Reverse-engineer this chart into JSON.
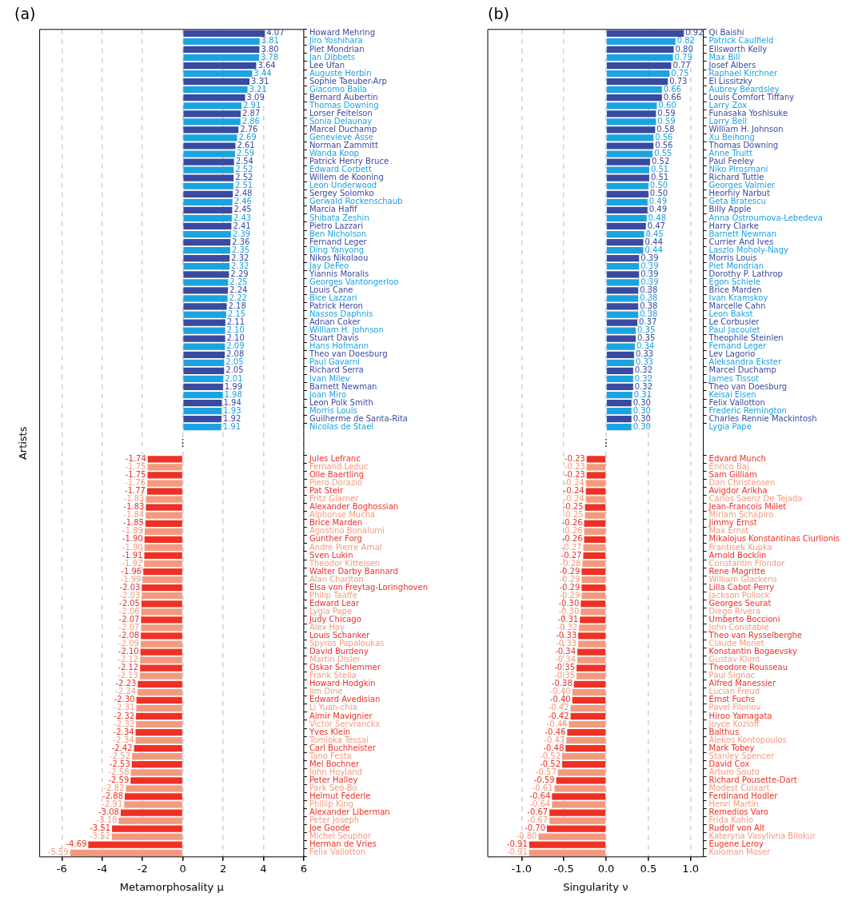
{
  "chart_data": [
    {
      "type": "bar",
      "orientation": "horizontal",
      "title": "(a)",
      "xlabel": "Metamorphosality μ",
      "ylabel": "Artists",
      "grid": "x",
      "xlim": [
        -7.1,
        6
      ],
      "xticks": [
        -6,
        -4,
        -2,
        0,
        2,
        4,
        6
      ],
      "annotations": [
        "⋮"
      ],
      "categories": [
        "Howard Mehring",
        "Jiro Yoshihara",
        "Piet Mondrian",
        "Jan Dibbets",
        "Lee Ufan",
        "Auguste Herbin",
        "Sophie Taeuber-Arp",
        "Giacomo Balla",
        "Bernard Aubertin",
        "Thomas Downing",
        "Lorser Feitelson",
        "Sonia Delaunay",
        "Marcel Duchamp",
        "Genevieve Asse",
        "Norman Zammitt",
        "Wanda Koop",
        "Patrick Henry Bruce",
        "Edward Corbett",
        "Willem de Kooning",
        "Leon Underwood",
        "Sergey Solomko",
        "Gerwald Rockenschaub",
        "Marcia Hafif",
        "Shibata Zeshin",
        "Pietro Lazzari",
        "Ben Nicholson",
        "Fernand Leger",
        "Ding Yanyong",
        "Nikos Nikolaou",
        "Jay DeFeo",
        "Yiannis Moralis",
        "Georges Vantongerloo",
        "Louis Cane",
        "Bice Lazzari",
        "Patrick Heron",
        "Nassos Daphnis",
        "Adnan Coker",
        "William H. Johnson",
        "Stuart Davis",
        "Hans Hofmann",
        "Theo van Doesburg",
        "Paul Gavarni",
        "Richard Serra",
        "Ivan Milev",
        "Barnett Newman",
        "Joan Miro",
        "Leon Polk Smith",
        "Morris Louis",
        "Guilherme de Santa-Rita",
        "Nicolas de Stael",
        null,
        null,
        null,
        "Jules Lefranc",
        "Fernand Leduc",
        "Olle Baertling",
        "Piero Dorazio",
        "Pat Steir",
        "Fritz Glarner",
        "Alexander Boghossian",
        "Alphonse Mucha",
        "Brice Marden",
        "Agostino Bonalumi",
        "Gunther Forg",
        "Andre Pierre Arnal",
        "Sven Lukin",
        "Theodor Kittelsen",
        "Walter Darby Bannard",
        "Alan Charlton",
        "Elsa von Freytag-Loringhoven",
        "Philip Taaffe",
        "Edward Lear",
        "Lygia Pape",
        "Judy Chicago",
        "Alex Hay",
        "Louis Schanker",
        "Spyros Papaloukas",
        "David Burdeny",
        "Martin Disler",
        "Oskar Schlemmer",
        "Frank Stella",
        "Howard Hodgkin",
        "Jim Dine",
        "Edward Avedisian",
        "Li Yuan-chia",
        "Almir Mavignier",
        "Victor Servranckx",
        "Yves Klein",
        "Tomioka Tessai",
        "Carl Buchheister",
        "Tano Festa",
        "Mel Bochner",
        "John Hoyland",
        "Peter Halley",
        "Park Seo-Bo",
        "Helmut Federle",
        "Phillip King",
        "Alexander Liberman",
        "Peter Joseph",
        "Joe Goode",
        "Michel Seuphor",
        "Herman de Vries",
        "Felix Vallotton"
      ],
      "values": [
        4.07,
        3.81,
        3.8,
        3.78,
        3.64,
        3.44,
        3.31,
        3.21,
        3.09,
        2.91,
        2.87,
        2.86,
        2.76,
        2.69,
        2.61,
        2.59,
        2.54,
        2.52,
        2.52,
        2.51,
        2.48,
        2.46,
        2.45,
        2.43,
        2.41,
        2.39,
        2.36,
        2.35,
        2.32,
        2.32,
        2.29,
        2.25,
        2.24,
        2.22,
        2.18,
        2.15,
        2.11,
        2.1,
        2.1,
        2.09,
        2.08,
        2.05,
        2.05,
        2.01,
        1.99,
        1.98,
        1.94,
        1.93,
        1.92,
        1.91,
        null,
        null,
        null,
        -1.74,
        -1.75,
        -1.75,
        -1.76,
        -1.77,
        -1.83,
        -1.83,
        -1.84,
        -1.85,
        -1.89,
        -1.9,
        -1.9,
        -1.91,
        -1.92,
        -1.96,
        -1.99,
        -2.03,
        -2.03,
        -2.05,
        -2.06,
        -2.07,
        -2.07,
        -2.08,
        -2.09,
        -2.1,
        -2.12,
        -2.12,
        -2.13,
        -2.23,
        -2.24,
        -2.3,
        -2.31,
        -2.32,
        -2.32,
        -2.34,
        -2.34,
        -2.42,
        -2.52,
        -2.53,
        -2.58,
        -2.59,
        -2.82,
        -2.88,
        -2.91,
        -3.08,
        -3.18,
        -3.51,
        -3.52,
        -4.69,
        -5.59
      ],
      "value_labels": [
        "4.07",
        "3.81",
        "3.80",
        "3.78",
        "3.64",
        "3.44",
        "3.31",
        "3.21",
        "3.09",
        "2.91",
        "2.87",
        "2.86",
        "2.76",
        "2.69",
        "2.61",
        "2.59",
        "2.54",
        "2.52",
        "2.52",
        "2.51",
        "2.48",
        "2.46",
        "2.45",
        "2.43",
        "2.41",
        "2.39",
        "2.36",
        "2.35",
        "2.32",
        "2.32",
        "2.29",
        "2.25",
        "2.24",
        "2.22",
        "2.18",
        "2.15",
        "2.11",
        "2.10",
        "2.10",
        "2.09",
        "2.08",
        "2.05",
        "2.05",
        "2.01",
        "1.99",
        "1.98",
        "1.94",
        "1.93",
        "1.92",
        "1.91",
        null,
        null,
        null,
        "-1.74",
        "-1.75",
        "-1.75",
        "-1.76",
        "-1.77",
        "-1.83",
        "-1.83",
        "-1.84",
        "-1.85",
        "-1.89",
        "-1.90",
        "-1.90",
        "-1.91",
        "-1.92",
        "-1.96",
        "-1.99",
        "-2.03",
        "-2.03",
        "-2.05",
        "-2.06",
        "-2.07",
        "-2.07",
        "-2.08",
        "-2.09",
        "-2.10",
        "-2.12",
        "-2.12",
        "-2.13",
        "-2.23",
        "-2.24",
        "-2.30",
        "-2.31",
        "-2.32",
        "-2.32",
        "-2.34",
        "-2.34",
        "-2.42",
        "-2.52",
        "-2.53",
        "-2.58",
        "-2.59",
        "-2.82",
        "-2.88",
        "-2.91",
        "-3.08",
        "-3.18",
        "-3.51",
        "-3.52",
        "-4.69",
        "-5.59"
      ],
      "colors": [
        "#3a4aa0",
        "#1ba3e0",
        "#3a4aa0",
        "#1ba3e0",
        "#3a4aa0",
        "#1ba3e0",
        "#3a4aa0",
        "#1ba3e0",
        "#3a4aa0",
        "#1ba3e0",
        "#3a4aa0",
        "#1ba3e0",
        "#3a4aa0",
        "#1ba3e0",
        "#3a4aa0",
        "#1ba3e0",
        "#3a4aa0",
        "#1ba3e0",
        "#3a4aa0",
        "#1ba3e0",
        "#3a4aa0",
        "#1ba3e0",
        "#3a4aa0",
        "#1ba3e0",
        "#3a4aa0",
        "#1ba3e0",
        "#3a4aa0",
        "#1ba3e0",
        "#3a4aa0",
        "#1ba3e0",
        "#3a4aa0",
        "#1ba3e0",
        "#3a4aa0",
        "#1ba3e0",
        "#3a4aa0",
        "#1ba3e0",
        "#3a4aa0",
        "#1ba3e0",
        "#3a4aa0",
        "#1ba3e0",
        "#3a4aa0",
        "#1ba3e0",
        "#3a4aa0",
        "#1ba3e0",
        "#3a4aa0",
        "#1ba3e0",
        "#3a4aa0",
        "#1ba3e0",
        "#3a4aa0",
        "#1ba3e0",
        null,
        null,
        null,
        "#ee3124",
        "#f39a7e",
        "#ee3124",
        "#f39a7e",
        "#ee3124",
        "#f39a7e",
        "#ee3124",
        "#f39a7e",
        "#ee3124",
        "#f39a7e",
        "#ee3124",
        "#f39a7e",
        "#ee3124",
        "#f39a7e",
        "#ee3124",
        "#f39a7e",
        "#ee3124",
        "#f39a7e",
        "#ee3124",
        "#f39a7e",
        "#ee3124",
        "#f39a7e",
        "#ee3124",
        "#f39a7e",
        "#ee3124",
        "#f39a7e",
        "#ee3124",
        "#f39a7e",
        "#ee3124",
        "#f39a7e",
        "#ee3124",
        "#f39a7e",
        "#ee3124",
        "#f39a7e",
        "#ee3124",
        "#f39a7e",
        "#ee3124",
        "#f39a7e",
        "#ee3124",
        "#f39a7e",
        "#ee3124",
        "#f39a7e",
        "#ee3124",
        "#f39a7e",
        "#ee3124",
        "#f39a7e",
        "#ee3124",
        "#f39a7e",
        "#ee3124",
        "#f39a7e"
      ]
    },
    {
      "type": "bar",
      "orientation": "horizontal",
      "title": "(b)",
      "xlabel": "Singularity ν",
      "grid": "x",
      "xlim": [
        -1.4,
        1.15
      ],
      "xticks": [
        {
          "value": -1,
          "label": "-1.0"
        },
        {
          "value": -0.5,
          "label": "-0.5"
        },
        {
          "value": 0,
          "label": "0.0"
        },
        {
          "value": 0.5,
          "label": "0.5"
        },
        {
          "value": 1,
          "label": "1.0"
        }
      ],
      "annotations": [
        "⋮"
      ],
      "categories": [
        "Qi Baishi",
        "Patrick Caulfield",
        "Ellsworth Kelly",
        "Max Bill",
        "Josef Albers",
        "Raphael Kirchner",
        "El Lissitzky",
        "Aubrey Beardsley",
        "Louis Comfort Tiffany",
        "Larry Zox",
        "Funasaka Yoshisuke",
        "Larry Bell",
        "William H. Johnson",
        "Xu Beihong",
        "Thomas Downing",
        "Anne Truitt",
        "Paul Feeley",
        "Niko Pirosmani",
        "Richard Tuttle",
        "Georges Valmier",
        "Heorhiy Narbut",
        "Geta Bratescu",
        "Billy Apple",
        "Anna Ostroumova-Lebedeva",
        "Harry Clarke",
        "Barnett Newman",
        "Currier And Ives",
        "Laszlo Moholy-Nagy",
        "Morris Louis",
        "Piet Mondrian",
        "Dorothy P. Lathrop",
        "Egon Schiele",
        "Brice Marden",
        "Ivan Kramskoy",
        "Marcelle Cahn",
        "Leon Bakst",
        "Le Corbusier",
        "Paul Jacoulet",
        "Theophile Steinlen",
        "Fernand Leger",
        "Lev Lagorio",
        "Aleksandra Ekster",
        "Marcel Duchamp",
        "James Tissot",
        "Theo van Doesburg",
        "Keisai Eisen",
        "Felix Vallotton",
        "Frederic Remington",
        "Charles Rennie Mackintosh",
        "Lygia Pape",
        null,
        null,
        null,
        "Edvard Munch",
        "Enrico Baj",
        "Sam Gilliam",
        "Dan Christensen",
        "Avigdor Arikha",
        "Carlos Saenz De Tejada",
        "Jean-Francois Millet",
        "Miriam Schapiro",
        "Jimmy Ernst",
        "Max Ernst",
        "Mikalojus Konstantinas Ciurlionis",
        "Frantisek Kupka",
        "Arnold Bocklin",
        "Constantin Flondor",
        "Rene Magritte",
        "William Glackens",
        "Lilla Cabot Perry",
        "Jackson Pollock",
        "Georges Seurat",
        "Diego Rivera",
        "Umberto Boccioni",
        "John Constable",
        "Theo van Rysselberghe",
        "Claude Monet",
        "Konstantin Bogaevsky",
        "Gustav Klimt",
        "Theodore Rousseau",
        "Paul Signac",
        "Alfred Manessier",
        "Lucian Freud",
        "Ernst Fuchs",
        "Pavel Filonov",
        "Hiroo Yamagata",
        "Joyce Kozloff",
        "Balthus",
        "Alekos Kontopoulos",
        "Mark Tobey",
        "Stanley Spencer",
        "David Cox",
        "Arturo Souto",
        "Richard Pousette-Dart",
        "Modest Cuixart",
        "Ferdinand Hodler",
        "Henri Martin",
        "Remedios Varo",
        "Frida Kahlo",
        "Rudolf von Alt",
        "Kateryna Vasylivna Bilokur",
        "Eugene Leroy",
        "Koloman Moser"
      ],
      "values": [
        0.92,
        0.82,
        0.8,
        0.79,
        0.77,
        0.75,
        0.73,
        0.66,
        0.66,
        0.6,
        0.59,
        0.59,
        0.58,
        0.56,
        0.56,
        0.55,
        0.52,
        0.51,
        0.51,
        0.5,
        0.5,
        0.49,
        0.49,
        0.48,
        0.47,
        0.45,
        0.44,
        0.44,
        0.39,
        0.39,
        0.39,
        0.39,
        0.38,
        0.38,
        0.38,
        0.38,
        0.37,
        0.35,
        0.35,
        0.34,
        0.33,
        0.33,
        0.32,
        0.32,
        0.32,
        0.31,
        0.3,
        0.3,
        0.3,
        0.3,
        null,
        null,
        null,
        -0.23,
        -0.23,
        -0.23,
        -0.24,
        -0.24,
        -0.24,
        -0.25,
        -0.25,
        -0.26,
        -0.26,
        -0.26,
        -0.27,
        -0.27,
        -0.28,
        -0.29,
        -0.29,
        -0.29,
        -0.29,
        -0.3,
        -0.3,
        -0.31,
        -0.32,
        -0.33,
        -0.33,
        -0.34,
        -0.34,
        -0.35,
        -0.35,
        -0.38,
        -0.4,
        -0.4,
        -0.42,
        -0.42,
        -0.44,
        -0.46,
        -0.47,
        -0.48,
        -0.52,
        -0.52,
        -0.57,
        -0.59,
        -0.61,
        -0.64,
        -0.64,
        -0.67,
        -0.67,
        -0.7,
        -0.8,
        -0.91,
        -0.91
      ],
      "value_labels": [
        "0.92",
        "0.82",
        "0.80",
        "0.79",
        "0.77",
        "0.75",
        "0.73",
        "0.66",
        "0.66",
        "0.60",
        "0.59",
        "0.59",
        "0.58",
        "0.56",
        "0.56",
        "0.55",
        "0.52",
        "0.51",
        "0.51",
        "0.50",
        "0.50",
        "0.49",
        "0.49",
        "0.48",
        "0.47",
        "0.45",
        "0.44",
        "0.44",
        "0.39",
        "0.39",
        "0.39",
        "0.39",
        "0.38",
        "0.38",
        "0.38",
        "0.38",
        "0.37",
        "0.35",
        "0.35",
        "0.34",
        "0.33",
        "0.33",
        "0.32",
        "0.32",
        "0.32",
        "0.31",
        "0.30",
        "0.30",
        "0.30",
        "0.30",
        null,
        null,
        null,
        "-0.23",
        "-0.23",
        "-0.23",
        "-0.24",
        "-0.24",
        "-0.24",
        "-0.25",
        "-0.25",
        "-0.26",
        "-0.26",
        "-0.26",
        "-0.27",
        "-0.27",
        "-0.28",
        "-0.29",
        "-0.29",
        "-0.29",
        "-0.29",
        "-0.30",
        "-0.30",
        "-0.31",
        "-0.32",
        "-0.33",
        "-0.33",
        "-0.34",
        "-0.34",
        "-0.35",
        "-0.35",
        "-0.38",
        "-0.40",
        "-0.40",
        "-0.42",
        "-0.42",
        "-0.44",
        "-0.46",
        "-0.47",
        "-0.48",
        "-0.52",
        "-0.52",
        "-0.57",
        "-0.59",
        "-0.61",
        "-0.64",
        "-0.64",
        "-0.67",
        "-0.67",
        "-0.70",
        "-0.80",
        "-0.91",
        "-0.91"
      ],
      "colors": [
        "#3a4aa0",
        "#1ba3e0",
        "#3a4aa0",
        "#1ba3e0",
        "#3a4aa0",
        "#1ba3e0",
        "#3a4aa0",
        "#1ba3e0",
        "#3a4aa0",
        "#1ba3e0",
        "#3a4aa0",
        "#1ba3e0",
        "#3a4aa0",
        "#1ba3e0",
        "#3a4aa0",
        "#1ba3e0",
        "#3a4aa0",
        "#1ba3e0",
        "#3a4aa0",
        "#1ba3e0",
        "#3a4aa0",
        "#1ba3e0",
        "#3a4aa0",
        "#1ba3e0",
        "#3a4aa0",
        "#1ba3e0",
        "#3a4aa0",
        "#1ba3e0",
        "#3a4aa0",
        "#1ba3e0",
        "#3a4aa0",
        "#1ba3e0",
        "#3a4aa0",
        "#1ba3e0",
        "#3a4aa0",
        "#1ba3e0",
        "#3a4aa0",
        "#1ba3e0",
        "#3a4aa0",
        "#1ba3e0",
        "#3a4aa0",
        "#1ba3e0",
        "#3a4aa0",
        "#1ba3e0",
        "#3a4aa0",
        "#1ba3e0",
        "#3a4aa0",
        "#1ba3e0",
        "#3a4aa0",
        "#1ba3e0",
        null,
        null,
        null,
        "#ee3124",
        "#f39a7e",
        "#ee3124",
        "#f39a7e",
        "#ee3124",
        "#f39a7e",
        "#ee3124",
        "#f39a7e",
        "#ee3124",
        "#f39a7e",
        "#ee3124",
        "#f39a7e",
        "#ee3124",
        "#f39a7e",
        "#ee3124",
        "#f39a7e",
        "#ee3124",
        "#f39a7e",
        "#ee3124",
        "#f39a7e",
        "#ee3124",
        "#f39a7e",
        "#ee3124",
        "#f39a7e",
        "#ee3124",
        "#f39a7e",
        "#ee3124",
        "#f39a7e",
        "#ee3124",
        "#f39a7e",
        "#ee3124",
        "#f39a7e",
        "#ee3124",
        "#f39a7e",
        "#ee3124",
        "#f39a7e",
        "#ee3124",
        "#f39a7e",
        "#ee3124",
        "#f39a7e",
        "#ee3124",
        "#f39a7e",
        "#ee3124",
        "#f39a7e",
        "#ee3124",
        "#f39a7e",
        "#ee3124",
        "#f39a7e",
        "#ee3124",
        "#f39a7e"
      ]
    }
  ]
}
